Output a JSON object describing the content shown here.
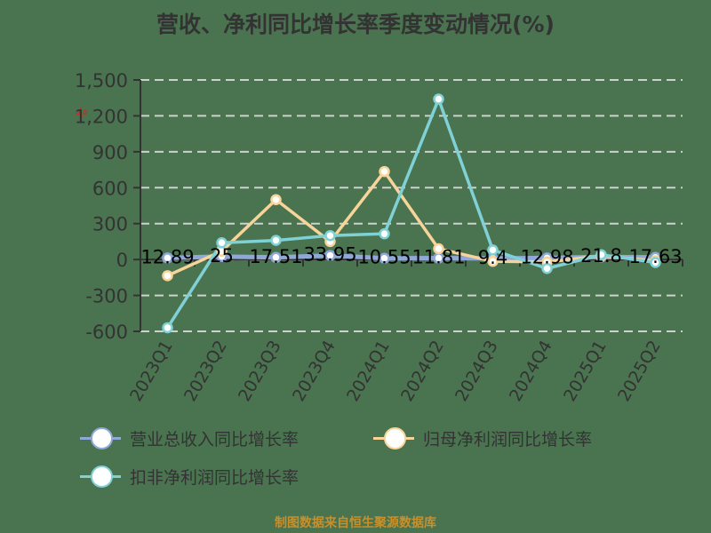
{
  "title": "营收、净利同比增长率季度变动情况(%)",
  "unit_mark": "%",
  "footer": "制图数据来自恒生聚源数据库",
  "legend": [
    {
      "label": "营业总收入同比增长率",
      "color": "#8fa8d8"
    },
    {
      "label": "归母净利润同比增长率",
      "color": "#f7d59a"
    },
    {
      "label": "扣非净利润同比增长率",
      "color": "#7fd1d6"
    }
  ],
  "chart_data": {
    "type": "line",
    "title": "营收、净利同比增长率季度变动情况(%)",
    "xlabel": "",
    "ylabel": "%",
    "categories": [
      "2023Q1",
      "2023Q2",
      "2023Q3",
      "2023Q4",
      "2024Q1",
      "2024Q2",
      "2024Q3",
      "2024Q4",
      "2025Q1",
      "2025Q2"
    ],
    "ylim": [
      -600,
      1500
    ],
    "yticks": [
      -600,
      -300,
      0,
      300,
      600,
      900,
      1200,
      1500
    ],
    "ytick_labels": [
      "-600",
      "-300",
      "0",
      "300",
      "600",
      "900",
      "1,200",
      "1,500"
    ],
    "grid": true,
    "legend_position": "bottom",
    "series": [
      {
        "name": "营业总收入同比增长率",
        "color": "#8fa8d8",
        "values": [
          12.89,
          25,
          17.51,
          33.95,
          10.55,
          11.81,
          9.4,
          12.98,
          21.8,
          17.63
        ],
        "labels": [
          "12.89",
          "25",
          "17.51",
          "33.95",
          "10.55",
          "11.81",
          "9.4",
          "12.98",
          "21.8",
          "17.63"
        ]
      },
      {
        "name": "归母净利润同比增长率",
        "color": "#f7d59a",
        "values": [
          -135,
          70,
          500,
          150,
          735,
          90,
          -15,
          -20,
          30,
          -10
        ]
      },
      {
        "name": "扣非净利润同比增长率",
        "color": "#7fd1d6",
        "values": [
          -570,
          140,
          160,
          200,
          215,
          1340,
          80,
          -75,
          40,
          -25
        ]
      }
    ]
  }
}
